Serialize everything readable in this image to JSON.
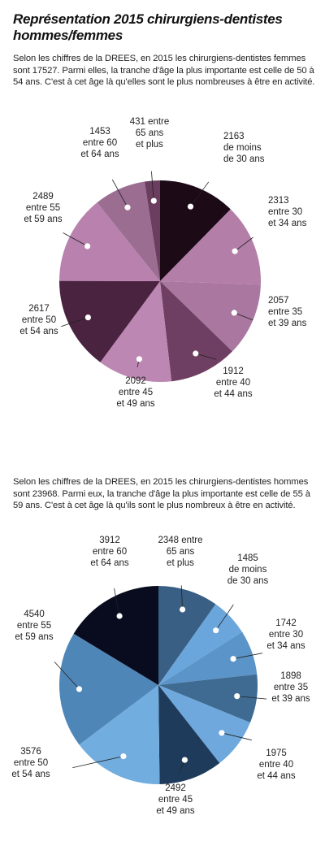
{
  "title": "Représentation 2015 chirurgiens-dentistes hommes/femmes",
  "women_text": "Selon les chiffres de la DREES, en 2015 les chirurgiens-dentistes femmes sont 17527. Parmi elles, la tranche d'âge la plus importante est celle de 50 à 54 ans. C'est à cet âge là qu'elles sont le plus nombreuses à être en activité.",
  "men_text": "Selon les chiffres de la DREES, en 2015 les chirurgiens-dentistes hommes sont 23968. Parmi eux, la tranche d'âge la plus importante est celle de 55 à 59 ans. C'est à cet âge là qu'ils sont le plus nombreux à être en activité.",
  "chart_data": [
    {
      "type": "pie",
      "title": "",
      "slices": [
        {
          "value": 2163,
          "label": [
            "2163",
            "de moins",
            "de 30 ans"
          ],
          "color": "#1c0a17"
        },
        {
          "value": 2313,
          "label": [
            "2313",
            "entre 30",
            "et 34 ans"
          ],
          "color": "#b37fa9"
        },
        {
          "value": 2057,
          "label": [
            "2057",
            "entre 35",
            "et 39 ans"
          ],
          "color": "#a977a0"
        },
        {
          "value": 1912,
          "label": [
            "1912",
            "entre 40",
            "et 44 ans"
          ],
          "color": "#6e3f62"
        },
        {
          "value": 2092,
          "label": [
            "2092",
            "entre 45",
            "et 49 ans"
          ],
          "color": "#bd87b3"
        },
        {
          "value": 2617,
          "label": [
            "2617",
            "entre 50",
            "et 54 ans"
          ],
          "color": "#4a2340"
        },
        {
          "value": 2489,
          "label": [
            "2489",
            "entre 55",
            "et 59 ans"
          ],
          "color": "#b881ae"
        },
        {
          "value": 1453,
          "label": [
            "1453",
            "entre 60",
            "et 64 ans"
          ],
          "color": "#9b6d91"
        },
        {
          "value": 431,
          "label": [
            "431 entre",
            "65 ans",
            "et plus"
          ],
          "color": "#6b3e60"
        }
      ]
    },
    {
      "type": "pie",
      "title": "",
      "slices": [
        {
          "value": 2348,
          "label": [
            "2348 entre",
            "65 ans",
            "et plus"
          ],
          "color": "#3a5f85"
        },
        {
          "value": 1485,
          "label": [
            "1485",
            "de moins",
            "de 30 ans"
          ],
          "color": "#6aa6db"
        },
        {
          "value": 1742,
          "label": [
            "1742",
            "entre 30",
            "et 34 ans"
          ],
          "color": "#5b94c8"
        },
        {
          "value": 1898,
          "label": [
            "1898",
            "entre 35",
            "et 39 ans"
          ],
          "color": "#3f6b92"
        },
        {
          "value": 1975,
          "label": [
            "1975",
            "entre 40",
            "et 44 ans"
          ],
          "color": "#6ea8dc"
        },
        {
          "value": 2492,
          "label": [
            "2492",
            "entre 45",
            "et 49 ans"
          ],
          "color": "#1f3b5c"
        },
        {
          "value": 3576,
          "label": [
            "3576",
            "entre 50",
            "et 54 ans"
          ],
          "color": "#72addf"
        },
        {
          "value": 4540,
          "label": [
            "4540",
            "entre 55",
            "et 59 ans"
          ],
          "color": "#4f86b8"
        },
        {
          "value": 3912,
          "label": [
            "3912",
            "entre 60",
            "et 64 ans"
          ],
          "color": "#080c1e"
        }
      ]
    }
  ]
}
